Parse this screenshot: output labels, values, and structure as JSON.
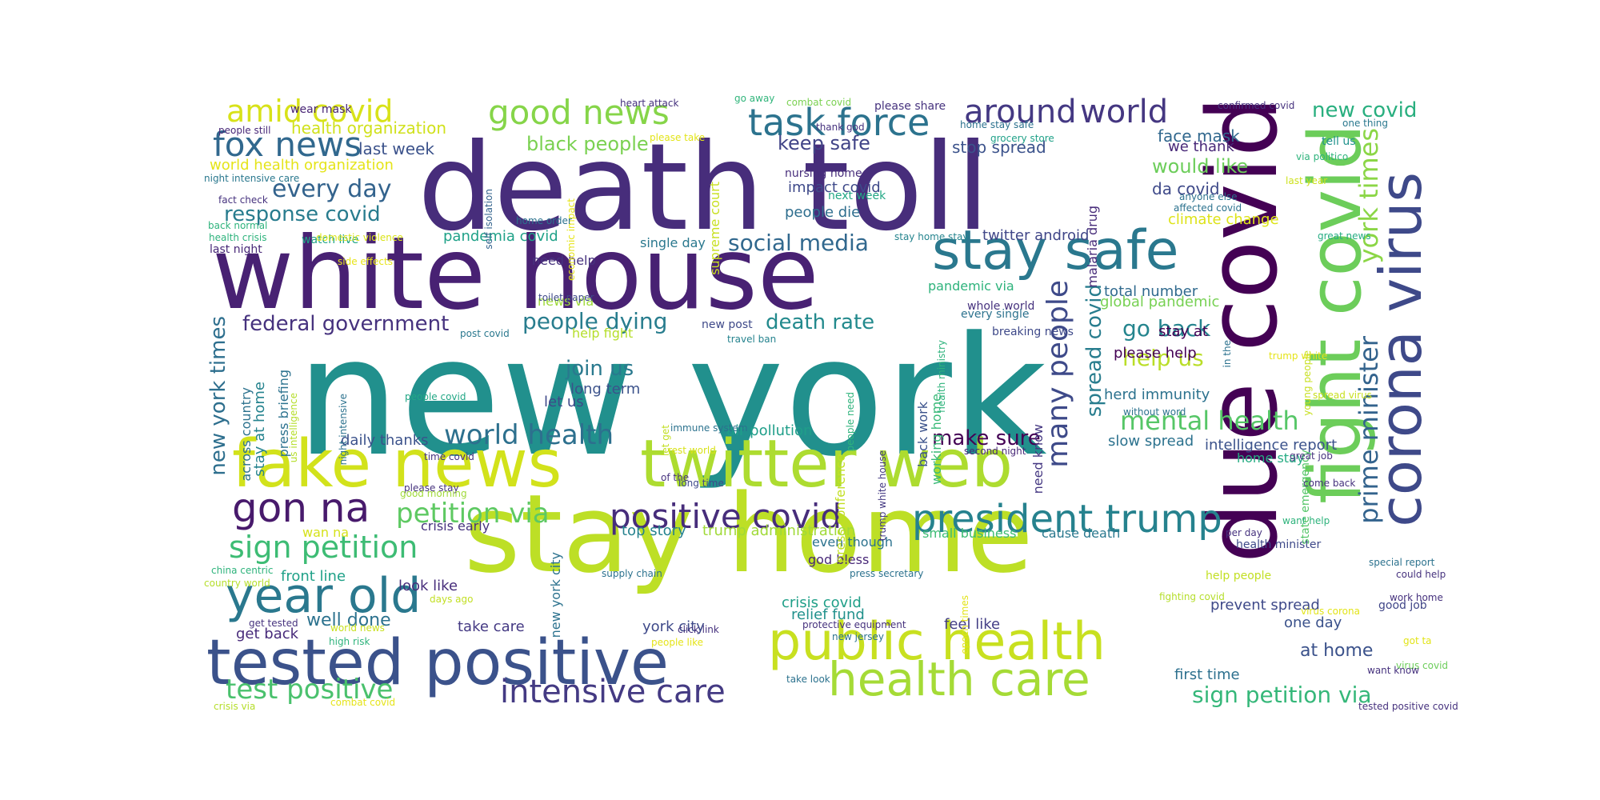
{
  "words": [
    {
      "text": "new york",
      "color": "#21908d"
    },
    {
      "text": "death toll",
      "color": "#472d7b"
    },
    {
      "text": "white house",
      "color": "#482173"
    },
    {
      "text": "stay home",
      "color": "#bddf26"
    },
    {
      "text": "due covid",
      "color": "#440154"
    },
    {
      "text": "fake news",
      "color": "#d2e21b"
    },
    {
      "text": "twitter web",
      "color": "#addc30"
    },
    {
      "text": "tested positive",
      "color": "#3b528b"
    },
    {
      "text": "public health",
      "color": "#c8e020"
    },
    {
      "text": "stay safe",
      "color": "#2a788e"
    },
    {
      "text": "fight covid",
      "color": "#6ccd5a"
    },
    {
      "text": "corona virus",
      "color": "#3e4989"
    },
    {
      "text": "health care",
      "color": "#a5db36"
    },
    {
      "text": "gon na",
      "color": "#481a6c"
    },
    {
      "text": "president trump",
      "color": "#26828e"
    },
    {
      "text": "year old",
      "color": "#2a788e"
    },
    {
      "text": "positive covid",
      "color": "#472d7b"
    },
    {
      "text": "intensive care",
      "color": "#443a83"
    },
    {
      "text": "good news",
      "color": "#86d549"
    },
    {
      "text": "task force",
      "color": "#2c738e"
    },
    {
      "text": "fox news",
      "color": "#31688e"
    },
    {
      "text": "around",
      "color": "#443983"
    },
    {
      "text": "world",
      "color": "#453781"
    },
    {
      "text": "amid covid",
      "color": "#d8e219"
    },
    {
      "text": "sign petition",
      "color": "#3dbc74"
    },
    {
      "text": "test positive",
      "color": "#4ac16d"
    },
    {
      "text": "many people",
      "color": "#3e4a89"
    },
    {
      "text": "prime minister",
      "color": "#33638d"
    },
    {
      "text": "york times",
      "color": "#8bd646"
    },
    {
      "text": "petition via",
      "color": "#5ec962"
    },
    {
      "text": "world health",
      "color": "#2d708e"
    },
    {
      "text": "mental health",
      "color": "#56c667"
    },
    {
      "text": "sign petition via",
      "color": "#35b779"
    },
    {
      "text": "new covid",
      "color": "#29af7f"
    },
    {
      "text": "every day",
      "color": "#33638d"
    },
    {
      "text": "response covid",
      "color": "#287c8e"
    },
    {
      "text": "social media",
      "color": "#31688e"
    },
    {
      "text": "people dying",
      "color": "#287d8e"
    },
    {
      "text": "federal government",
      "color": "#46327e"
    },
    {
      "text": "new york times",
      "color": "#2e6f8e"
    },
    {
      "text": "spread covid",
      "color": "#287d8e"
    },
    {
      "text": "help us",
      "color": "#bade28"
    },
    {
      "text": "go back",
      "color": "#25858e"
    },
    {
      "text": "make sure",
      "color": "#440154"
    },
    {
      "text": "death rate",
      "color": "#238a8d"
    },
    {
      "text": "join us",
      "color": "#29798e"
    },
    {
      "text": "keep safe",
      "color": "#414487"
    },
    {
      "text": "black people",
      "color": "#7ad151"
    },
    {
      "text": "health organization",
      "color": "#d0e11c"
    },
    {
      "text": "world health organization",
      "color": "#e5e419"
    },
    {
      "text": "last week",
      "color": "#3b528b"
    },
    {
      "text": "would like",
      "color": "#6ccd5a"
    },
    {
      "text": "stop spread",
      "color": "#3b528b"
    },
    {
      "text": "face mask",
      "color": "#31688e"
    },
    {
      "text": "we thank",
      "color": "#482878"
    },
    {
      "text": "da covid",
      "color": "#3e4989"
    },
    {
      "text": "climate change",
      "color": "#dde318"
    },
    {
      "text": "twitter android",
      "color": "#404688"
    },
    {
      "text": "total number",
      "color": "#306a8e"
    },
    {
      "text": "global pandemic",
      "color": "#77d153"
    },
    {
      "text": "stay at",
      "color": "#440154"
    },
    {
      "text": "please help",
      "color": "#440154"
    },
    {
      "text": "herd immunity",
      "color": "#2c728e"
    },
    {
      "text": "slow spread",
      "color": "#2c728e"
    },
    {
      "text": "intelligence report",
      "color": "#3b528b"
    },
    {
      "text": "home stay",
      "color": "#25ac82"
    },
    {
      "text": "well done",
      "color": "#2c728e"
    },
    {
      "text": "front line",
      "color": "#1fa188"
    },
    {
      "text": "look like",
      "color": "#472d7b"
    },
    {
      "text": "get back",
      "color": "#472a7a"
    },
    {
      "text": "take care",
      "color": "#443983"
    },
    {
      "text": "york city",
      "color": "#3e4989"
    },
    {
      "text": "relief fund",
      "color": "#21918c"
    },
    {
      "text": "crisis covid",
      "color": "#1f9f88"
    },
    {
      "text": "god bless",
      "color": "#482878"
    },
    {
      "text": "feel like",
      "color": "#433e85"
    },
    {
      "text": "prevent spread",
      "color": "#3e4989"
    },
    {
      "text": "at home",
      "color": "#3b528b"
    },
    {
      "text": "one day",
      "color": "#3b528b"
    },
    {
      "text": "first time",
      "color": "#2d708e"
    },
    {
      "text": "top story",
      "color": "#26828e"
    },
    {
      "text": "trump administration",
      "color": "#a0da39"
    },
    {
      "text": "small business",
      "color": "#3dbc74"
    },
    {
      "text": "cause death",
      "color": "#2a788e"
    },
    {
      "text": "air pollution",
      "color": "#1f9e89"
    },
    {
      "text": "daily thanks",
      "color": "#3b528b"
    },
    {
      "text": "crisis early",
      "color": "#46327e"
    },
    {
      "text": "impact covid",
      "color": "#3e4989"
    },
    {
      "text": "people die",
      "color": "#2e6e8e"
    },
    {
      "text": "pandemia covid",
      "color": "#1fa188"
    },
    {
      "text": "single day",
      "color": "#2a788e"
    },
    {
      "text": "need help",
      "color": "#46327e"
    },
    {
      "text": "news via",
      "color": "#9fda3a"
    },
    {
      "text": "let us",
      "color": "#3e4989"
    },
    {
      "text": "long term",
      "color": "#3b528b"
    },
    {
      "text": "help fight",
      "color": "#b5de2b"
    },
    {
      "text": "pandemic via",
      "color": "#2eb37c"
    },
    {
      "text": "even though",
      "color": "#2c728e"
    },
    {
      "text": "health minister",
      "color": "#3e4989"
    },
    {
      "text": "good job",
      "color": "#404688"
    },
    {
      "text": "tell us",
      "color": "#20928c"
    },
    {
      "text": "help people",
      "color": "#c2df23"
    },
    {
      "text": "new post",
      "color": "#3e4989"
    },
    {
      "text": "breaking news",
      "color": "#3e4989"
    },
    {
      "text": "whole world",
      "color": "#46327e"
    },
    {
      "text": "every single",
      "color": "#2c728e"
    },
    {
      "text": "nursing home",
      "color": "#472d7b"
    },
    {
      "text": "next week",
      "color": "#22a785"
    },
    {
      "text": "watch live",
      "color": "#20a486"
    },
    {
      "text": "last night",
      "color": "#482878"
    },
    {
      "text": "press briefing",
      "color": "#2c728e"
    },
    {
      "text": "stay at home",
      "color": "#25838e"
    },
    {
      "text": "across country",
      "color": "#2c728e"
    },
    {
      "text": "malaria drug",
      "color": "#472c7a"
    },
    {
      "text": "supreme court",
      "color": "#c8e020"
    },
    {
      "text": "working home",
      "color": "#38b977"
    },
    {
      "text": "press conference",
      "color": "#c2df23"
    },
    {
      "text": "need know",
      "color": "#453882"
    },
    {
      "text": "back work",
      "color": "#3b528b"
    },
    {
      "text": "state emergency",
      "color": "#54c568"
    },
    {
      "text": "new york city",
      "color": "#2c728e"
    },
    {
      "text": "wan na",
      "color": "#d5e21a"
    },
    {
      "text": "wear mask",
      "color": "#482475"
    },
    {
      "text": "heart attack",
      "color": "#46327e"
    },
    {
      "text": "go away",
      "color": "#31b57b"
    },
    {
      "text": "combat covid",
      "color": "#7ad151"
    },
    {
      "text": "please share",
      "color": "#46327e"
    },
    {
      "text": "confirmed covid",
      "color": "#46327e"
    },
    {
      "text": "people still",
      "color": "#482878"
    },
    {
      "text": "please take",
      "color": "#e2e418"
    },
    {
      "text": "grocery store",
      "color": "#1fa188"
    },
    {
      "text": "thank god",
      "color": "#46327e"
    },
    {
      "text": "home stay safe",
      "color": "#2c728e"
    },
    {
      "text": "one thing",
      "color": "#2a788e"
    },
    {
      "text": "via politico",
      "color": "#2eb37c"
    },
    {
      "text": "last year",
      "color": "#cde11d"
    },
    {
      "text": "affected covid",
      "color": "#2c728e"
    },
    {
      "text": "anyone else",
      "color": "#2c728e"
    },
    {
      "text": "great news",
      "color": "#25ac82"
    },
    {
      "text": "night intensive care",
      "color": "#2a788e"
    },
    {
      "text": "fact check",
      "color": "#46327e"
    },
    {
      "text": "back normal",
      "color": "#2eb37c"
    },
    {
      "text": "health crisis",
      "color": "#2eb37c"
    },
    {
      "text": "domestic violence",
      "color": "#dae319"
    },
    {
      "text": "side effects",
      "color": "#e7e419"
    },
    {
      "text": "economic impact",
      "color": "#e5e419"
    },
    {
      "text": "self isolation",
      "color": "#33638d"
    },
    {
      "text": "home order",
      "color": "#2c728e"
    },
    {
      "text": "stay home stay",
      "color": "#25848e"
    },
    {
      "text": "toilet paper",
      "color": "#3e4989"
    },
    {
      "text": "post covid",
      "color": "#2a788e"
    },
    {
      "text": "travel ban",
      "color": "#25838e"
    },
    {
      "text": "health ministry",
      "color": "#2eb37c"
    },
    {
      "text": "in the",
      "color": "#2c728e"
    },
    {
      "text": "trump white",
      "color": "#e5e419"
    },
    {
      "text": "young people",
      "color": "#c8e020"
    },
    {
      "text": "spread virus",
      "color": "#c8e020"
    },
    {
      "text": "without word",
      "color": "#2c728e"
    },
    {
      "text": "second night",
      "color": "#482878"
    },
    {
      "text": "people covid",
      "color": "#22a785"
    },
    {
      "text": "night intensive",
      "color": "#2c728e"
    },
    {
      "text": "us intelligence",
      "color": "#b5de2b"
    },
    {
      "text": "trump white house",
      "color": "#443983"
    },
    {
      "text": "people need",
      "color": "#2eb37c"
    },
    {
      "text": "immune system",
      "color": "#2c728e"
    },
    {
      "text": "let get",
      "color": "#c2df23"
    },
    {
      "text": "rest world",
      "color": "#d8e219"
    },
    {
      "text": "great job",
      "color": "#46327e"
    },
    {
      "text": "come back",
      "color": "#46327e"
    },
    {
      "text": "time covid",
      "color": "#46327e"
    },
    {
      "text": "please stay",
      "color": "#46327e"
    },
    {
      "text": "good morning",
      "color": "#a0da39"
    },
    {
      "text": "of the",
      "color": "#46327e"
    },
    {
      "text": "long time",
      "color": "#3e4989"
    },
    {
      "text": "want help",
      "color": "#2eb37c"
    },
    {
      "text": "per day",
      "color": "#46327e"
    },
    {
      "text": "special report",
      "color": "#2c728e"
    },
    {
      "text": "china centric",
      "color": "#2eb37c"
    },
    {
      "text": "country world",
      "color": "#b5de2b"
    },
    {
      "text": "supply chain",
      "color": "#2c728e"
    },
    {
      "text": "days ago",
      "color": "#c2df23"
    },
    {
      "text": "press secretary",
      "color": "#2c728e"
    },
    {
      "text": "could help",
      "color": "#46327e"
    },
    {
      "text": "get tested",
      "color": "#46327e"
    },
    {
      "text": "work home",
      "color": "#46327e"
    },
    {
      "text": "epoch times",
      "color": "#e2e418"
    },
    {
      "text": "fighting covid",
      "color": "#b5de2b"
    },
    {
      "text": "virus corona",
      "color": "#e2e418"
    },
    {
      "text": "world news",
      "color": "#c8e020"
    },
    {
      "text": "protective equipment",
      "color": "#46327e"
    },
    {
      "text": "click link",
      "color": "#46327e"
    },
    {
      "text": "new jersey",
      "color": "#2c728e"
    },
    {
      "text": "high risk",
      "color": "#2eb37c"
    },
    {
      "text": "people like",
      "color": "#e5e419"
    },
    {
      "text": "got ta",
      "color": "#e2e418"
    },
    {
      "text": "virus covid",
      "color": "#6ccd5a"
    },
    {
      "text": "tested positive covid",
      "color": "#46327e"
    },
    {
      "text": "want know",
      "color": "#46327e"
    },
    {
      "text": "take look",
      "color": "#2c728e"
    },
    {
      "text": "crisis via",
      "color": "#b5de2b"
    },
    {
      "text": "combat covid",
      "color": "#e5e419"
    }
  ]
}
